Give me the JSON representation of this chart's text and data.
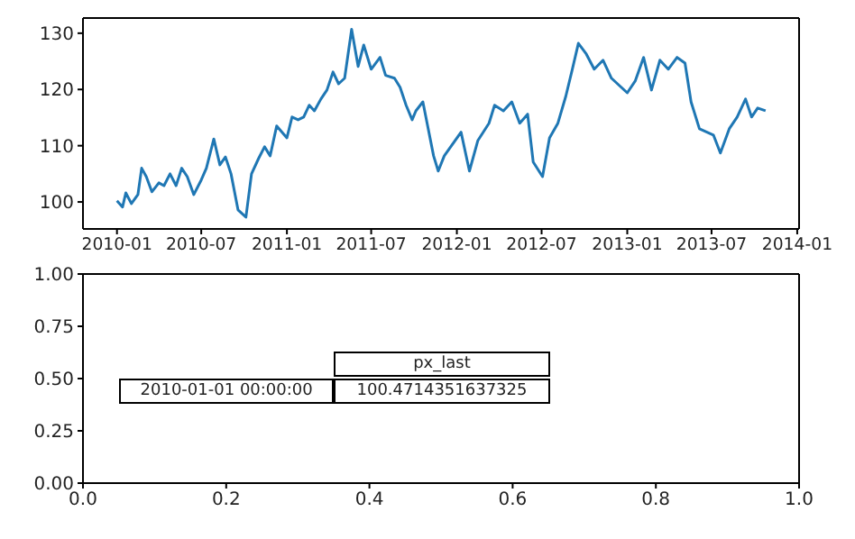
{
  "chart_data": [
    {
      "type": "line",
      "x": [
        "2010-01-01",
        "2010-01-13",
        "2010-01-20",
        "2010-02-01",
        "2010-02-15",
        "2010-02-23",
        "2010-03-05",
        "2010-03-17",
        "2010-04-01",
        "2010-04-12",
        "2010-04-25",
        "2010-05-08",
        "2010-05-20",
        "2010-06-01",
        "2010-06-15",
        "2010-07-01",
        "2010-07-12",
        "2010-07-28",
        "2010-08-10",
        "2010-08-22",
        "2010-09-03",
        "2010-09-18",
        "2010-10-05",
        "2010-10-17",
        "2010-11-01",
        "2010-11-14",
        "2010-11-26",
        "2010-12-10",
        "2011-01-01",
        "2011-01-12",
        "2011-01-25",
        "2011-02-06",
        "2011-02-18",
        "2011-03-01",
        "2011-03-15",
        "2011-03-28",
        "2011-04-10",
        "2011-04-22",
        "2011-05-05",
        "2011-05-20",
        "2011-06-03",
        "2011-06-15",
        "2011-07-01",
        "2011-07-20",
        "2011-08-01",
        "2011-08-20",
        "2011-09-01",
        "2011-09-14",
        "2011-09-27",
        "2011-10-05",
        "2011-10-20",
        "2011-11-12",
        "2011-11-22",
        "2011-12-05",
        "2012-01-10",
        "2012-01-28",
        "2012-02-15",
        "2012-03-10",
        "2012-03-22",
        "2012-04-10",
        "2012-04-28",
        "2012-05-15",
        "2012-06-01",
        "2012-06-13",
        "2012-07-03",
        "2012-07-18",
        "2012-08-05",
        "2012-08-22",
        "2012-09-05",
        "2012-09-18",
        "2012-10-05",
        "2012-10-22",
        "2012-11-10",
        "2012-11-28",
        "2013-01-01",
        "2013-01-18",
        "2013-02-05",
        "2013-02-22",
        "2013-03-12",
        "2013-03-30",
        "2013-04-18",
        "2013-05-05",
        "2013-05-18",
        "2013-06-05",
        "2013-07-05",
        "2013-07-20",
        "2013-08-08",
        "2013-08-25",
        "2013-09-12",
        "2013-09-25",
        "2013-10-08",
        "2013-10-25"
      ],
      "series": [
        {
          "color": "#1f77b4",
          "values": [
            100.2,
            99.1,
            101.6,
            99.7,
            101.3,
            106,
            104.5,
            101.8,
            103.4,
            102.9,
            105,
            102.9,
            106,
            104.5,
            101.3,
            103.9,
            106,
            111.2,
            106.6,
            108,
            105,
            98.6,
            97.3,
            105,
            107.7,
            109.8,
            108.2,
            113.5,
            111.4,
            115.1,
            114.6,
            115.1,
            117.2,
            116.2,
            118.3,
            119.9,
            123.1,
            121,
            122,
            130.7,
            124.1,
            127.9,
            123.6,
            125.7,
            122.5,
            122,
            120.4,
            117.2,
            114.6,
            116.2,
            117.8,
            108.2,
            105.5,
            108.2,
            112.4,
            105.5,
            110.9,
            114,
            117.2,
            116.2,
            117.8,
            114,
            115.6,
            107.1,
            104.5,
            111.4,
            114,
            118.8,
            123.6,
            128.2,
            126.3,
            123.6,
            125.2,
            122,
            119.4,
            121.5,
            125.7,
            119.9,
            125.2,
            123.6,
            125.7,
            124.7,
            117.8,
            113,
            111.9,
            108.7,
            113,
            115.1,
            118.3,
            115.1,
            116.7,
            116.2
          ]
        }
      ],
      "xlim": [
        "2009-10-20",
        "2014-01-05"
      ],
      "xticks": [
        "2010-01",
        "2010-07",
        "2011-01",
        "2011-07",
        "2012-01",
        "2012-07",
        "2013-01",
        "2013-07",
        "2014-01"
      ],
      "ylim": [
        95.2,
        132.7
      ],
      "yticks": [
        100,
        110,
        120,
        130
      ],
      "grid": false,
      "legend": false
    },
    {
      "type": "scatter",
      "xlim": [
        0,
        1
      ],
      "xticks": [
        {
          "value": 0,
          "label": "0.0"
        },
        0.2,
        0.4,
        0.6,
        0.8,
        {
          "value": 1,
          "label": "1.0"
        }
      ],
      "ylim": [
        0,
        1
      ],
      "yticks": [
        {
          "value": 0,
          "label": "0.00"
        },
        0.25,
        {
          "value": 0.5,
          "label": "0.50"
        },
        0.75,
        {
          "value": 1,
          "label": "1.00"
        }
      ],
      "annotations": [
        "px_last",
        "2010-01-01 00:00:00",
        "100.4714351637325"
      ]
    }
  ]
}
